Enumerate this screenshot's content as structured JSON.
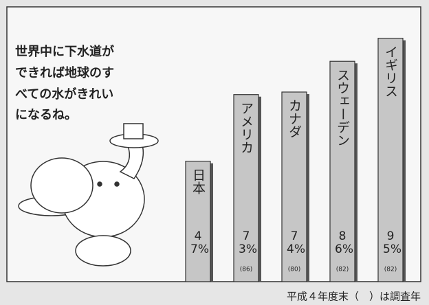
{
  "chart_data": {
    "type": "bar",
    "note_lines": [
      "世界中に下水道が",
      "できれば地球のす",
      "べての水がきれい",
      "になるね。"
    ],
    "categories": [
      "日本",
      "アメリカ",
      "カナダ",
      "スウェーデン",
      "イギリス"
    ],
    "values": [
      47,
      73,
      74,
      86,
      95
    ],
    "value_labels": [
      "47%",
      "73%",
      "74%",
      "86%",
      "95%"
    ],
    "survey_years": [
      null,
      "(86)",
      "(80)",
      "(82)",
      "(82)"
    ],
    "color": "#c6c6c6",
    "footnote": "平成４年度末（　）は調査年"
  }
}
